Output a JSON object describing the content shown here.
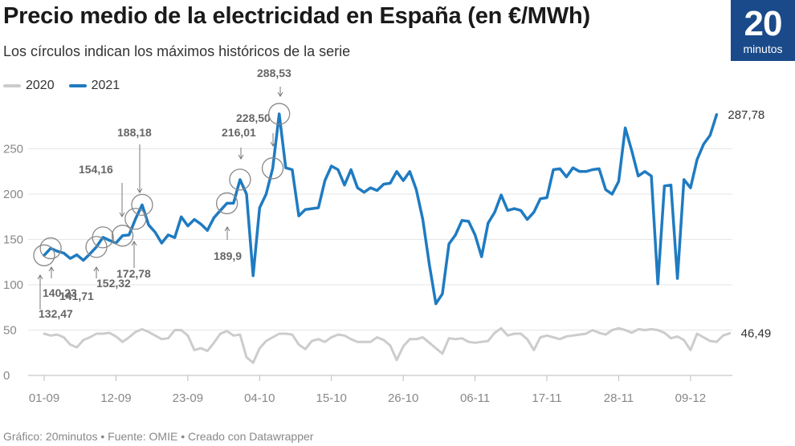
{
  "header": {
    "title": "Precio medio de la electricidad en España (en €/MWh)",
    "subtitle": "Los círculos indican los máximos históricos de la serie"
  },
  "logo": {
    "number": "20",
    "word": "minutos",
    "color": "#1a4a8a"
  },
  "footer": {
    "text": "Gráfico: 20minutos • Fuente: OMIE • Creado con Datawrapper"
  },
  "colors": {
    "series2020": "#cccccc",
    "series2021": "#1f7bc1",
    "grid": "#e6e6e6",
    "text": "#888888"
  },
  "chart_data": {
    "type": "line",
    "title": "Precio medio de la electricidad en España (en €/MWh)",
    "xlabel": "",
    "ylabel": "",
    "ylim": [
      0,
      300
    ],
    "yticks": [
      "0",
      "50",
      "100",
      "150",
      "200",
      "250"
    ],
    "ytick_values": [
      0,
      50,
      100,
      150,
      200,
      250
    ],
    "xticks": [
      {
        "label": "01-09",
        "day": 0
      },
      {
        "label": "12-09",
        "day": 11
      },
      {
        "label": "23-09",
        "day": 22
      },
      {
        "label": "04-10",
        "day": 33
      },
      {
        "label": "15-10",
        "day": 44
      },
      {
        "label": "26-10",
        "day": 55
      },
      {
        "label": "06-11",
        "day": 66
      },
      {
        "label": "17-11",
        "day": 77
      },
      {
        "label": "28-11",
        "day": 88
      },
      {
        "label": "09-12",
        "day": 99
      }
    ],
    "series": [
      {
        "name": "2020",
        "end_label": "46,49",
        "values": [
          46,
          44,
          45,
          42,
          34,
          31,
          39,
          42,
          46,
          46,
          47,
          43,
          37,
          42,
          48,
          51,
          48,
          44,
          40,
          41,
          50,
          50,
          44,
          28,
          30,
          27,
          36,
          46,
          49,
          44,
          45,
          20,
          14,
          30,
          38,
          42,
          46,
          46,
          45,
          34,
          29,
          38,
          40,
          37,
          42,
          45,
          44,
          40,
          37,
          37,
          37,
          42,
          39,
          33,
          17,
          32,
          40,
          40,
          42,
          36,
          30,
          24,
          41,
          40,
          41,
          37,
          36,
          37,
          38,
          47,
          52,
          44,
          46,
          46,
          40,
          28,
          42,
          44,
          42,
          40,
          43,
          44,
          45,
          46,
          50,
          47,
          45,
          50,
          52,
          50,
          47,
          51,
          50,
          51,
          50,
          47,
          41,
          43,
          39,
          28,
          46,
          42,
          38,
          37,
          44,
          46.49
        ]
      },
      {
        "name": "2021",
        "end_label": "287,78",
        "values": [
          132.47,
          140.23,
          137,
          135,
          129,
          133,
          127,
          134,
          141.71,
          152.32,
          149,
          146,
          154.16,
          155,
          172.78,
          188.18,
          166,
          158,
          146,
          155,
          152,
          175,
          165,
          172,
          167,
          160,
          174,
          182,
          189.9,
          190,
          216.01,
          200,
          110,
          185,
          200,
          228.5,
          288.53,
          229,
          227,
          176,
          183,
          184,
          185,
          215,
          231,
          227,
          210,
          227,
          207,
          202,
          207,
          204,
          211,
          212,
          225,
          215,
          225,
          205,
          172,
          122,
          79,
          90,
          145,
          155,
          171,
          170,
          155,
          131,
          168,
          180,
          199,
          182,
          184,
          182,
          172,
          180,
          195,
          196,
          227,
          228,
          219,
          229,
          225,
          225,
          227,
          228,
          205,
          200,
          214,
          273,
          248,
          220,
          225,
          220,
          101,
          209,
          210,
          107,
          216,
          207,
          238,
          255,
          265,
          287.78
        ]
      }
    ],
    "annotations": [
      {
        "day": 0,
        "value": 132.47,
        "label": "132,47"
      },
      {
        "day": 1,
        "value": 140.23,
        "label": "140,23"
      },
      {
        "day": 8,
        "value": 141.71,
        "label": "141,71"
      },
      {
        "day": 9,
        "value": 152.32,
        "label": "152,32"
      },
      {
        "day": 12,
        "value": 154.16,
        "label": "154,16"
      },
      {
        "day": 14,
        "value": 172.78,
        "label": "172,78"
      },
      {
        "day": 15,
        "value": 188.18,
        "label": "188,18"
      },
      {
        "day": 28,
        "value": 189.9,
        "label": "189,9"
      },
      {
        "day": 30,
        "value": 216.01,
        "label": "216,01"
      },
      {
        "day": 35,
        "value": 228.5,
        "label": "228,50"
      },
      {
        "day": 36,
        "value": 288.53,
        "label": "288,53"
      }
    ],
    "legend": [
      "2020",
      "2021"
    ]
  }
}
